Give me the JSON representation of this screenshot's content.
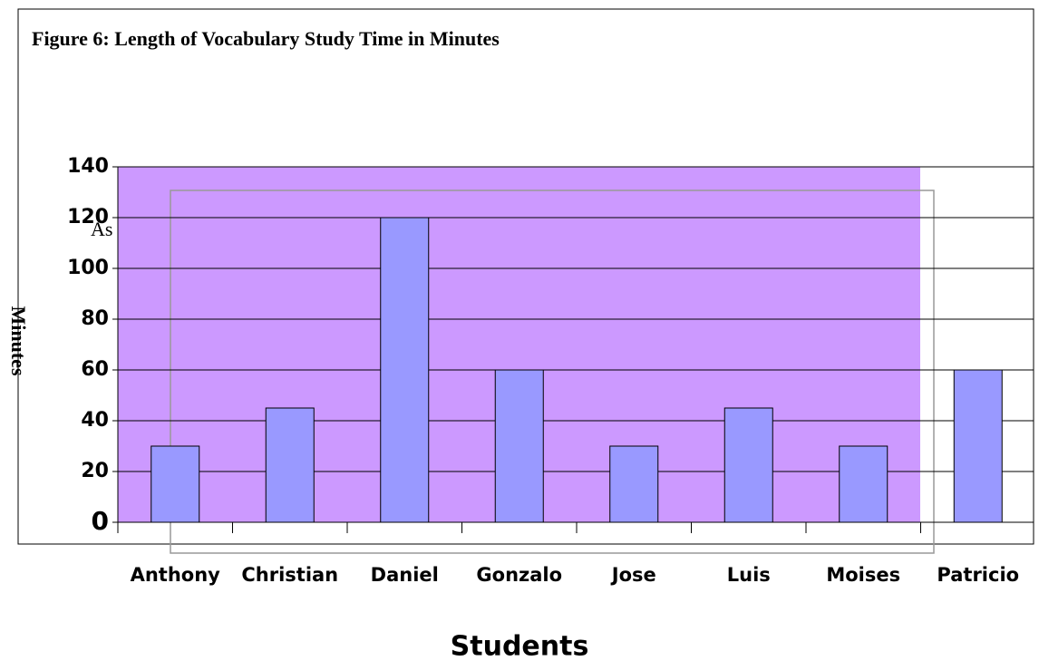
{
  "chart_data": {
    "type": "bar",
    "title": "Figure 6:  Length of Vocabulary Study Time in Minutes",
    "annotation": "As",
    "categories": [
      "Anthony",
      "Christian",
      "Daniel",
      "Gonzalo",
      "Jose",
      "Luis",
      "Moises",
      "Patricio"
    ],
    "values": [
      30,
      45,
      120,
      60,
      30,
      45,
      30,
      60
    ],
    "color": "#9999ff",
    "plot_background": "#cc99ff",
    "ylim": [
      0,
      140
    ],
    "yticks": [
      0,
      20,
      40,
      60,
      80,
      100,
      120,
      140
    ],
    "grid": true,
    "x_label": "Students",
    "y_label": "Minutes"
  }
}
